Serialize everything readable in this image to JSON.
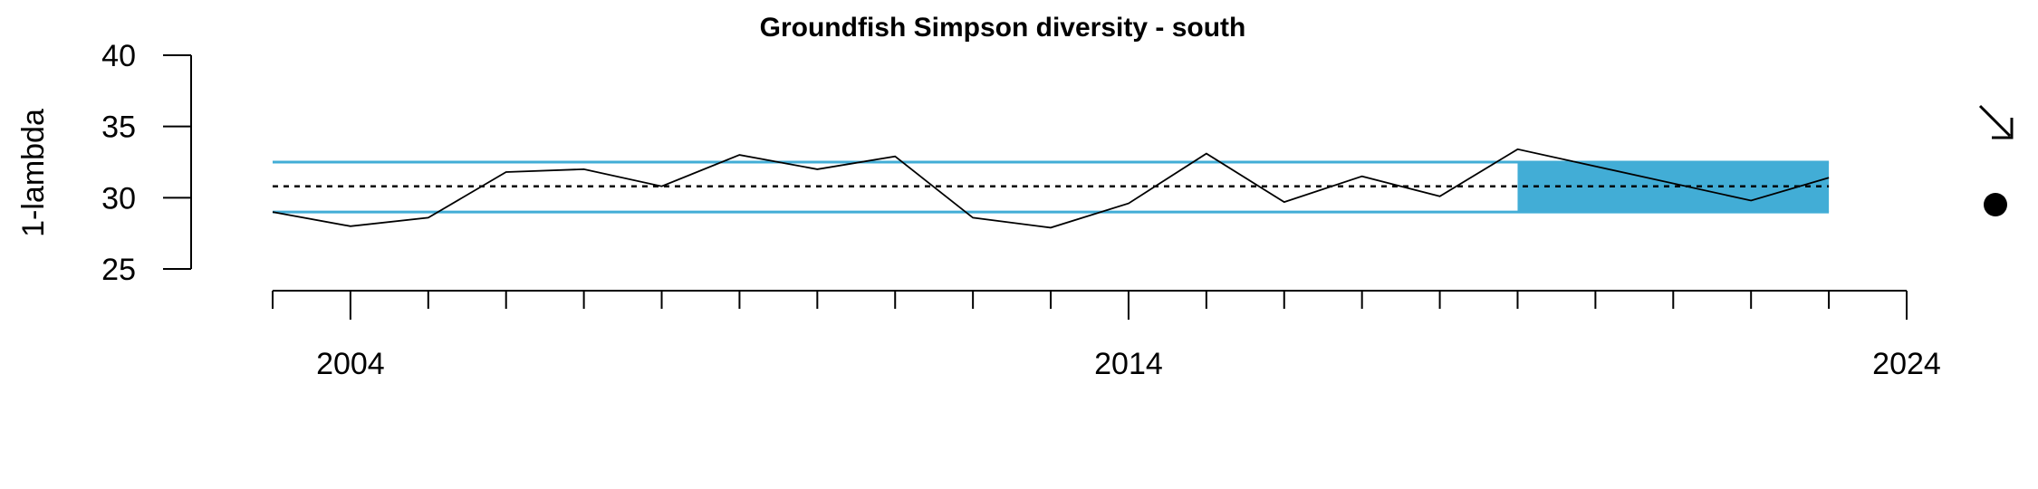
{
  "chart_data": {
    "type": "line",
    "title": "Groundfish Simpson diversity - south",
    "xlabel": "",
    "ylabel": "1-lambda",
    "xlim": [
      2002.9,
      2024.1
    ],
    "ylim": [
      25,
      40
    ],
    "x_ticks_major": [
      2004,
      2014,
      2024
    ],
    "x_tick_labels": [
      "2004",
      "2014",
      "2024"
    ],
    "x_ticks_minor": [
      2003,
      2005,
      2006,
      2007,
      2008,
      2009,
      2010,
      2011,
      2012,
      2013,
      2015,
      2016,
      2017,
      2018,
      2019,
      2020,
      2021,
      2022,
      2023
    ],
    "y_ticks": [
      25,
      30,
      35,
      40
    ],
    "y_tick_labels": [
      "25",
      "30",
      "35",
      "40"
    ],
    "series": [
      {
        "x": [
          2003,
          2004,
          2005,
          2006,
          2007,
          2008,
          2009,
          2010,
          2011,
          2012,
          2013,
          2014,
          2015,
          2016,
          2017,
          2018,
          2019,
          2022,
          2023
        ],
        "values": [
          29.0,
          28.0,
          28.6,
          31.8,
          32.0,
          30.8,
          33.0,
          32.0,
          32.9,
          28.6,
          27.9,
          29.6,
          33.1,
          29.7,
          31.5,
          30.1,
          33.4,
          29.8,
          31.4
        ]
      }
    ],
    "reference_lines": {
      "mean": 30.8,
      "upper": 32.5,
      "lower": 29.0,
      "x_start": 2003,
      "x_end": 2023
    },
    "highlight_region": {
      "x_start": 2019,
      "x_end": 2023,
      "y_low": 29.0,
      "y_high": 32.5
    },
    "trend_indicator": "arrow-down-right",
    "mean_indicator": "filled-circle",
    "grid": false,
    "colors": {
      "band": "#42ADD6",
      "line": "#000000",
      "mean_line": "#000000"
    }
  }
}
